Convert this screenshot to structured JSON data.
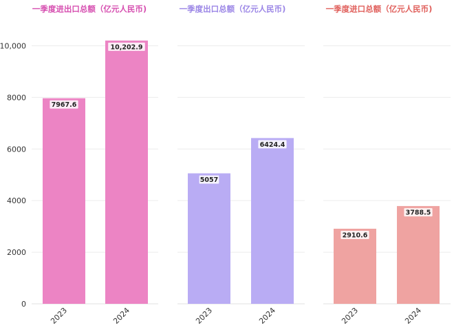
{
  "chart_data": [
    {
      "type": "bar",
      "title": "一季度进出口总额（亿元人民币)",
      "title_color": "#d64fb0",
      "bar_color": "#ec84c4",
      "categories": [
        "2023",
        "2024"
      ],
      "values": [
        7967.6,
        10202.9
      ],
      "value_labels": [
        "7967.6",
        "10,202.9"
      ],
      "ylim": [
        0,
        11000
      ],
      "yticks": [
        0,
        2000,
        4000,
        6000,
        8000,
        10000
      ],
      "ytick_labels": [
        "0",
        "2000",
        "4000",
        "6000",
        "8000",
        "10,000"
      ],
      "grid": true
    },
    {
      "type": "bar",
      "title": "一季度出口总额（亿元人民币)",
      "title_color": "#9b86e6",
      "bar_color": "#b9acf4",
      "categories": [
        "2023",
        "2024"
      ],
      "values": [
        5057,
        6424.4
      ],
      "value_labels": [
        "5057",
        "6424.4"
      ],
      "ylim": [
        0,
        11000
      ],
      "yticks": [
        0,
        2000,
        4000,
        6000,
        8000,
        10000
      ],
      "grid": true
    },
    {
      "type": "bar",
      "title": "一季度进口总额（亿元人民币)",
      "title_color": "#e0605c",
      "bar_color": "#efa3a1",
      "categories": [
        "2023",
        "2024"
      ],
      "values": [
        2910.6,
        3788.5
      ],
      "value_labels": [
        "2910.6",
        "3788.5"
      ],
      "ylim": [
        0,
        11000
      ],
      "yticks": [
        0,
        2000,
        4000,
        6000,
        8000,
        10000
      ],
      "grid": true
    }
  ]
}
